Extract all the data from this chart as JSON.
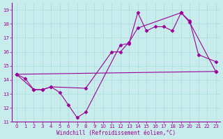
{
  "xlabel": "Windchill (Refroidissement éolien,°C)",
  "background_color": "#c8ecec",
  "line_color": "#990099",
  "grid_color": "#aadddd",
  "line1_x": [
    0,
    1,
    2,
    3,
    4,
    5,
    6,
    7,
    8,
    12,
    13,
    14,
    15,
    16,
    17,
    18,
    19,
    20,
    21,
    23
  ],
  "line1_y": [
    14.4,
    14.1,
    13.3,
    13.3,
    13.5,
    13.1,
    12.2,
    11.3,
    11.7,
    16.5,
    16.6,
    18.8,
    17.5,
    17.8,
    17.8,
    17.5,
    18.8,
    18.2,
    15.8,
    15.3
  ],
  "line2_x": [
    0,
    23
  ],
  "line2_y": [
    14.4,
    14.6
  ],
  "line3_x": [
    0,
    2,
    3,
    4,
    8,
    11,
    12,
    13,
    14,
    19,
    20,
    23
  ],
  "line3_y": [
    14.4,
    13.3,
    13.3,
    13.5,
    13.4,
    16.0,
    16.0,
    16.7,
    17.7,
    18.8,
    18.1,
    14.6
  ],
  "xlim": [
    -0.5,
    23.5
  ],
  "ylim": [
    11,
    19.5
  ],
  "yticks": [
    11,
    12,
    13,
    14,
    15,
    16,
    17,
    18,
    19
  ],
  "xticks": [
    0,
    1,
    2,
    3,
    4,
    5,
    6,
    7,
    8,
    9,
    10,
    11,
    12,
    13,
    14,
    15,
    16,
    17,
    18,
    19,
    20,
    21,
    22,
    23
  ]
}
